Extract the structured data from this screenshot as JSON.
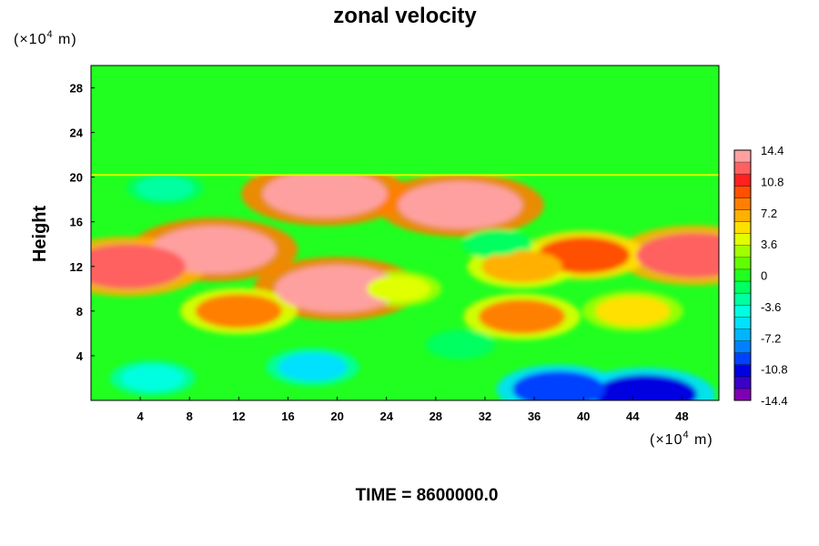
{
  "chart_data": {
    "type": "heatmap",
    "title": "zonal velocity",
    "ylabel": "Height",
    "y_unit_prefix": "(×10",
    "y_unit_exp": "4",
    "y_unit_suffix": " m)",
    "x_unit_prefix": "(×10",
    "x_unit_exp": "4",
    "x_unit_suffix": " m)",
    "x_ticks": [
      "4",
      "8",
      "12",
      "16",
      "20",
      "24",
      "28",
      "32",
      "36",
      "40",
      "44",
      "48"
    ],
    "y_ticks": [
      "4",
      "8",
      "12",
      "16",
      "20",
      "24",
      "28"
    ],
    "xlim": [
      0,
      51
    ],
    "ylim": [
      0,
      30
    ],
    "colorbar": {
      "ticks": [
        "14.4",
        "10.8",
        "7.2",
        "3.6",
        "0",
        "-3.6",
        "-7.2",
        "-10.8",
        "-14.4"
      ],
      "range": [
        -14.4,
        14.4
      ],
      "colors": [
        "#7f00b0",
        "#3a00c8",
        "#0000e0",
        "#0040ff",
        "#0080ff",
        "#00b4ff",
        "#00e0ff",
        "#00ffe0",
        "#00ffa0",
        "#00ff60",
        "#20ff20",
        "#60ff00",
        "#a0ff00",
        "#e0ff00",
        "#ffe000",
        "#ffb000",
        "#ff8000",
        "#ff5000",
        "#ff2020",
        "#ff6060",
        "#ffa0a0"
      ]
    },
    "features": [
      {
        "x": 10,
        "y": 13.5,
        "value": 14.4
      },
      {
        "x": 3,
        "y": 12,
        "value": 13
      },
      {
        "x": 19,
        "y": 18.5,
        "value": 14.4
      },
      {
        "x": 30,
        "y": 17.5,
        "value": 14.4
      },
      {
        "x": 20,
        "y": 10,
        "value": 14.4
      },
      {
        "x": 49,
        "y": 13,
        "value": 13
      },
      {
        "x": 40,
        "y": 13,
        "value": 9
      },
      {
        "x": 35,
        "y": 12,
        "value": 7
      },
      {
        "x": 35,
        "y": 7.5,
        "value": 8
      },
      {
        "x": 12,
        "y": 8,
        "value": 8
      },
      {
        "x": 25,
        "y": 10,
        "value": 4
      },
      {
        "x": 44,
        "y": 8,
        "value": 6
      },
      {
        "x": 18,
        "y": 3,
        "value": -5
      },
      {
        "x": 45,
        "y": 0.5,
        "value": -11
      },
      {
        "x": 38,
        "y": 1,
        "value": -9
      },
      {
        "x": 5,
        "y": 2,
        "value": -4
      },
      {
        "x": 6,
        "y": 19,
        "value": -3
      },
      {
        "x": 33,
        "y": 14,
        "value": -2
      },
      {
        "x": 30,
        "y": 5,
        "value": -2
      }
    ]
  },
  "footer": {
    "time_label": "TIME = 8600000.0"
  }
}
